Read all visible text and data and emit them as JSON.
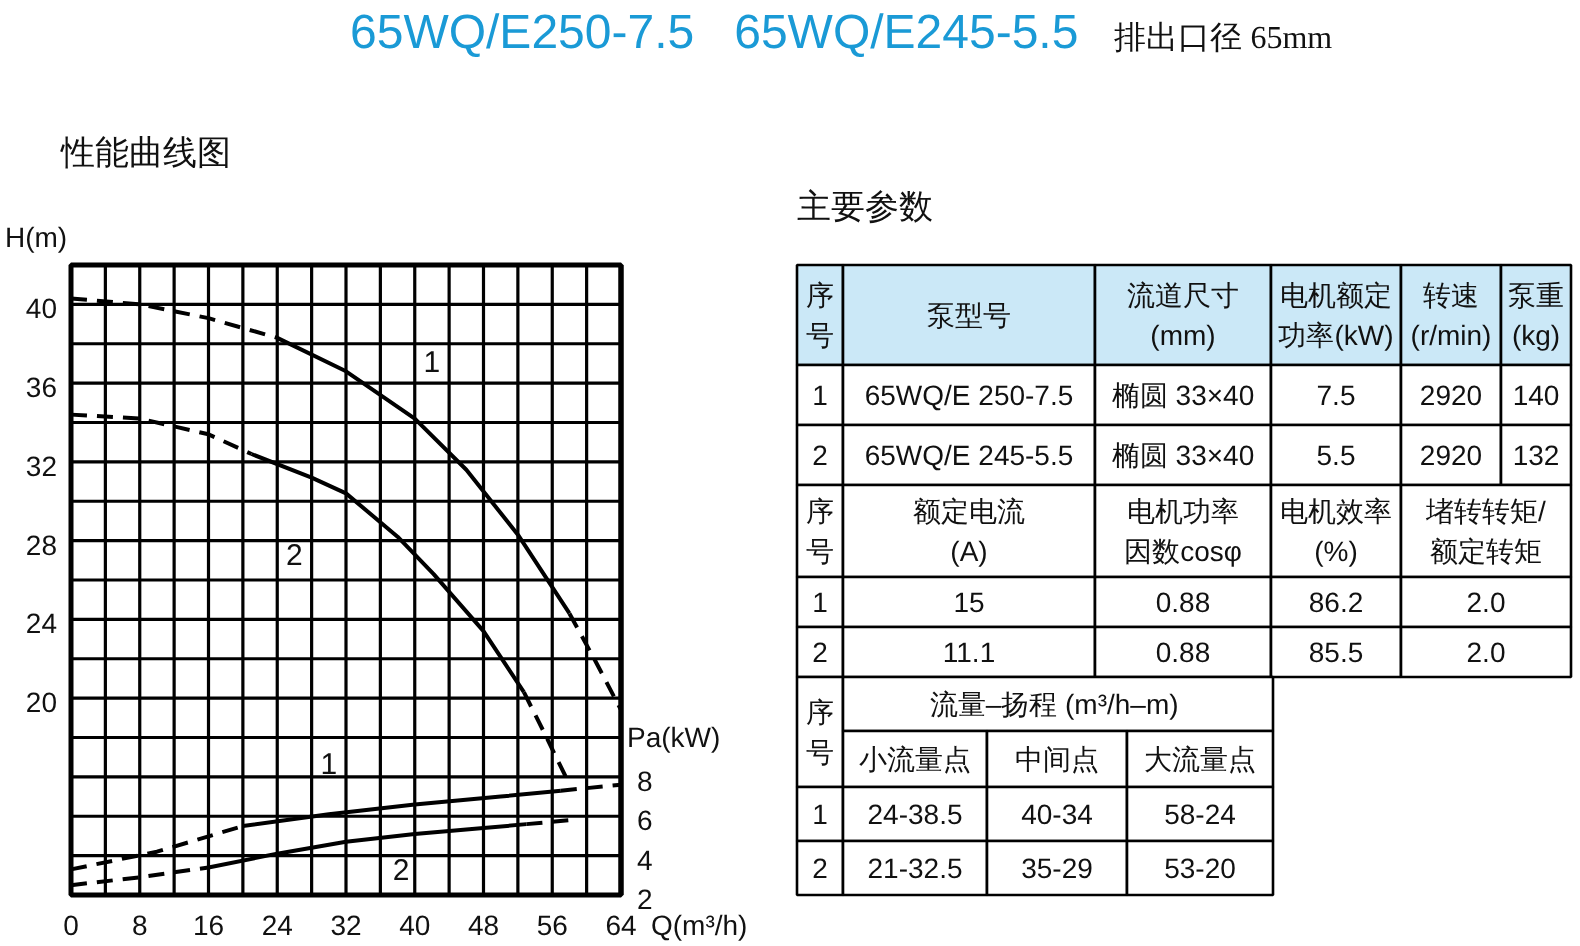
{
  "chart_data": [
    {
      "type": "line",
      "title": "性能曲线图",
      "xlabel": "Q(m³/h)",
      "ylabel": "H(m)",
      "y2label": "Pa(kW)",
      "annotations": [
        "65WQ/E250-7.5   65WQ/E245-5.5",
        "排出口径 65mm",
        {
          "text": "1",
          "x": 42,
          "y": 37.1
        },
        {
          "text": "2",
          "x": 26,
          "y": 27.3
        },
        {
          "text": "1",
          "x": 30,
          "y": 16.7
        },
        {
          "text": "2",
          "x": 38.4,
          "y": 11.3
        }
      ],
      "xlim": [
        0,
        64
      ],
      "xticks": [
        0,
        {
          "value": 4,
          "label": null
        },
        8,
        {
          "value": 12,
          "label": null
        },
        16,
        {
          "value": 20,
          "label": null
        },
        24,
        {
          "value": 28,
          "label": null
        },
        32,
        {
          "value": 36,
          "label": null
        },
        40,
        {
          "value": 44,
          "label": null
        },
        48,
        {
          "value": 52,
          "label": null
        },
        56,
        {
          "value": 60,
          "label": null
        },
        64
      ],
      "ylim": [
        10,
        42
      ],
      "yticks": [
        {
          "value": 10,
          "label": null
        },
        {
          "value": 12,
          "label": null
        },
        {
          "value": 14,
          "label": null
        },
        {
          "value": 16,
          "label": null
        },
        {
          "value": 18,
          "label": null
        },
        20,
        {
          "value": 22,
          "label": null
        },
        24,
        {
          "value": 26,
          "label": null
        },
        28,
        {
          "value": 30,
          "label": null
        },
        32,
        {
          "value": 34,
          "label": null
        },
        36,
        {
          "value": 38,
          "label": null
        },
        40,
        {
          "value": 42,
          "label": null
        }
      ],
      "y2lim": [
        2,
        34
      ],
      "y2ticks": [
        2,
        4,
        6,
        8
      ],
      "grid": true,
      "series": [
        {
          "color": "#000000",
          "line_style": "dashed",
          "x": [
            0,
            8,
            16,
            24
          ],
          "values": [
            40.3,
            40.0,
            39.3,
            38.3
          ]
        },
        {
          "color": "#000000",
          "line_style": "solid",
          "x": [
            24,
            32,
            40,
            46,
            52,
            58
          ],
          "values": [
            38.3,
            36.6,
            34.2,
            31.6,
            28.3,
            24.3
          ]
        },
        {
          "color": "#000000",
          "line_style": "dashed",
          "x": [
            58,
            61,
            64
          ],
          "values": [
            24.3,
            21.9,
            19.4
          ]
        },
        {
          "color": "#000000",
          "line_style": "dashed",
          "x": [
            0,
            8,
            16,
            21
          ],
          "values": [
            34.4,
            34.2,
            33.4,
            32.4
          ]
        },
        {
          "color": "#000000",
          "line_style": "solid",
          "x": [
            21,
            28,
            32,
            38,
            42.2,
            48,
            52.7
          ],
          "values": [
            32.4,
            31.2,
            30.4,
            28.2,
            26.3,
            23.4,
            20.3
          ]
        },
        {
          "color": "#000000",
          "line_style": "dashed",
          "x": [
            52.7,
            55,
            57.8
          ],
          "values": [
            20.3,
            18.3,
            15.8
          ]
        },
        {
          "color": "#000000",
          "line_style": "dashed",
          "axis": "y2",
          "x": [
            0,
            10,
            20
          ],
          "values": [
            3.3,
            4.2,
            5.5
          ]
        },
        {
          "color": "#000000",
          "line_style": "solid",
          "axis": "y2",
          "x": [
            20,
            30,
            40,
            50,
            57
          ],
          "values": [
            5.5,
            6.1,
            6.6,
            7.0,
            7.3
          ]
        },
        {
          "color": "#000000",
          "line_style": "dashed",
          "axis": "y2",
          "x": [
            57,
            64
          ],
          "values": [
            7.3,
            7.6
          ]
        },
        {
          "color": "#000000",
          "line_style": "dashed",
          "axis": "y2",
          "x": [
            0,
            8,
            16
          ],
          "values": [
            2.5,
            2.9,
            3.4
          ]
        },
        {
          "color": "#000000",
          "line_style": "solid",
          "axis": "y2",
          "x": [
            16,
            24,
            32,
            40,
            48,
            53
          ],
          "values": [
            3.4,
            4.1,
            4.7,
            5.1,
            5.4,
            5.6
          ]
        },
        {
          "color": "#000000",
          "line_style": "dashed",
          "axis": "y2",
          "x": [
            53,
            58
          ],
          "values": [
            5.6,
            5.8
          ]
        }
      ]
    },
    {
      "type": "other",
      "title": "主要参数",
      "annotations": [
        "序",
        "号",
        "泵型号",
        "流道尺寸",
        "(mm)",
        "电机额定",
        "功率(kW)",
        "转速",
        "(r/min)",
        "泵重",
        "(kg)",
        "1",
        "65WQ/E 250-7.5",
        "椭圆 33×40",
        "7.5",
        "2920",
        "140",
        "2",
        "65WQ/E 245-5.5",
        "椭圆 33×40",
        "5.5",
        "2920",
        "132",
        "序",
        "号",
        "额定电流",
        "(A)",
        "电机功率",
        "因数cosφ",
        "电机效率",
        "(%)",
        "堵转转矩/",
        "额定转矩",
        "1",
        "15",
        "0.88",
        "86.2",
        "2.0",
        "2",
        "11.1",
        "0.88",
        "85.5",
        "2.0",
        "序",
        "号",
        "流量–扬程  (m³/h–m)",
        "小流量点",
        "中间点",
        "大流量点",
        "1",
        "24-38.5",
        "40-34",
        "58-24",
        "2",
        "21-32.5",
        "35-29",
        "53-20"
      ]
    }
  ]
}
